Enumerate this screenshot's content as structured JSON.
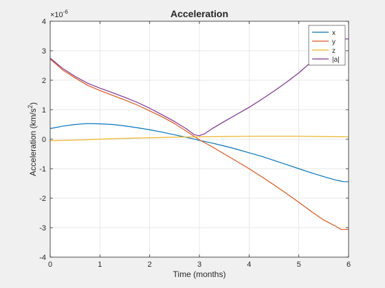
{
  "chart_data": {
    "type": "line",
    "title": "Acceleration",
    "xlabel": "Time (months)",
    "ylabel_base": "Acceleration (km/s",
    "ylabel_sup": "2",
    "ylabel_close": ")",
    "y_exponent_prefix": "×10",
    "y_exponent_power": "-6",
    "xlim": [
      0,
      6
    ],
    "ylim": [
      -4,
      4
    ],
    "xticks": [
      0,
      1,
      2,
      3,
      4,
      5,
      6
    ],
    "yticks": [
      -4,
      -3,
      -2,
      -1,
      0,
      1,
      2,
      3,
      4
    ],
    "grid": true,
    "legend_position": "top-right",
    "series": [
      {
        "name": "x",
        "color": "#0072bd",
        "points": [
          [
            0,
            0.36
          ],
          [
            0.25,
            0.44
          ],
          [
            0.5,
            0.5
          ],
          [
            0.75,
            0.53
          ],
          [
            1,
            0.52
          ],
          [
            1.25,
            0.5
          ],
          [
            1.5,
            0.45
          ],
          [
            1.75,
            0.39
          ],
          [
            2,
            0.32
          ],
          [
            2.25,
            0.24
          ],
          [
            2.5,
            0.15
          ],
          [
            2.75,
            0.06
          ],
          [
            3,
            -0.04
          ],
          [
            3.25,
            -0.13
          ],
          [
            3.5,
            -0.23
          ],
          [
            3.75,
            -0.34
          ],
          [
            4,
            -0.46
          ],
          [
            4.25,
            -0.58
          ],
          [
            4.5,
            -0.72
          ],
          [
            4.75,
            -0.86
          ],
          [
            5,
            -1.0
          ],
          [
            5.25,
            -1.14
          ],
          [
            5.5,
            -1.27
          ],
          [
            5.75,
            -1.39
          ],
          [
            5.9,
            -1.44
          ],
          [
            6,
            -1.44
          ]
        ]
      },
      {
        "name": "y",
        "color": "#d95319",
        "points": [
          [
            0,
            2.72
          ],
          [
            0.25,
            2.35
          ],
          [
            0.5,
            2.08
          ],
          [
            0.75,
            1.83
          ],
          [
            1,
            1.65
          ],
          [
            1.25,
            1.49
          ],
          [
            1.5,
            1.33
          ],
          [
            1.75,
            1.16
          ],
          [
            2,
            0.96
          ],
          [
            2.25,
            0.76
          ],
          [
            2.5,
            0.53
          ],
          [
            2.75,
            0.26
          ],
          [
            3,
            -0.02
          ],
          [
            3.25,
            -0.25
          ],
          [
            3.5,
            -0.5
          ],
          [
            3.75,
            -0.75
          ],
          [
            4,
            -1.0
          ],
          [
            4.25,
            -1.27
          ],
          [
            4.5,
            -1.55
          ],
          [
            4.75,
            -1.84
          ],
          [
            5,
            -2.14
          ],
          [
            5.25,
            -2.45
          ],
          [
            5.5,
            -2.74
          ],
          [
            5.75,
            -2.96
          ],
          [
            5.85,
            -3.06
          ],
          [
            6,
            -3.06
          ]
        ]
      },
      {
        "name": "z",
        "color": "#edb120",
        "points": [
          [
            0,
            -0.05
          ],
          [
            0.5,
            -0.03
          ],
          [
            1,
            0.0
          ],
          [
            1.5,
            0.03
          ],
          [
            2,
            0.05
          ],
          [
            2.5,
            0.07
          ],
          [
            3,
            0.08
          ],
          [
            3.5,
            0.09
          ],
          [
            4,
            0.1
          ],
          [
            4.5,
            0.1
          ],
          [
            5,
            0.1
          ],
          [
            5.5,
            0.09
          ],
          [
            6,
            0.08
          ]
        ]
      },
      {
        "name": "|a|",
        "color": "#7e2f8e",
        "points": [
          [
            0,
            2.75
          ],
          [
            0.25,
            2.4
          ],
          [
            0.5,
            2.13
          ],
          [
            0.75,
            1.9
          ],
          [
            1,
            1.73
          ],
          [
            1.25,
            1.58
          ],
          [
            1.5,
            1.42
          ],
          [
            1.75,
            1.25
          ],
          [
            2,
            1.05
          ],
          [
            2.25,
            0.83
          ],
          [
            2.5,
            0.6
          ],
          [
            2.75,
            0.34
          ],
          [
            2.9,
            0.15
          ],
          [
            3,
            0.12
          ],
          [
            3.1,
            0.18
          ],
          [
            3.25,
            0.35
          ],
          [
            3.5,
            0.6
          ],
          [
            3.75,
            0.84
          ],
          [
            4,
            1.08
          ],
          [
            4.25,
            1.35
          ],
          [
            4.5,
            1.63
          ],
          [
            4.75,
            1.93
          ],
          [
            5,
            2.25
          ],
          [
            5.25,
            2.62
          ],
          [
            5.5,
            3.0
          ],
          [
            5.7,
            3.31
          ],
          [
            5.8,
            3.4
          ],
          [
            6,
            3.4
          ]
        ]
      }
    ]
  }
}
